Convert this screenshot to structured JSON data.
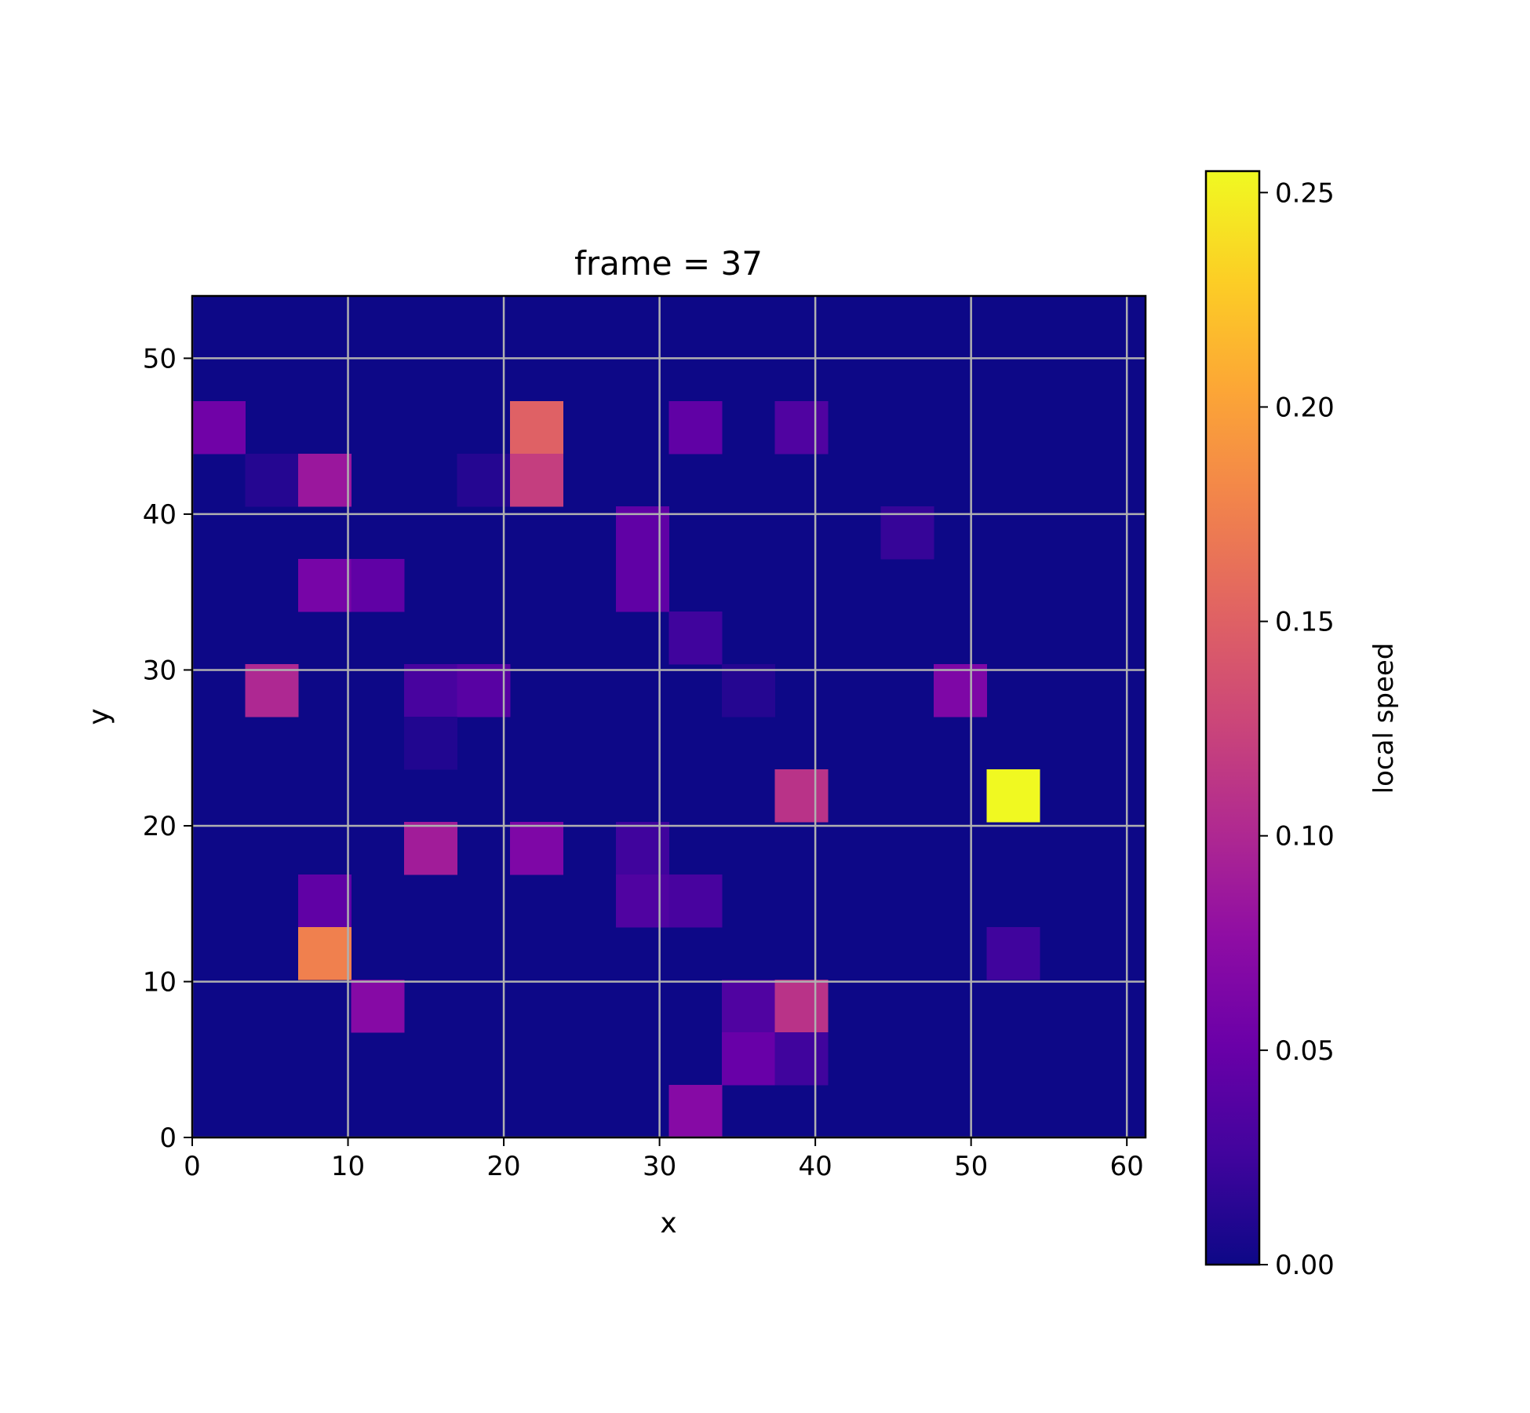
{
  "chart_data": {
    "type": "heatmap",
    "title": "frame = 37",
    "xlabel": "x",
    "ylabel": "y",
    "colorbar_label": "local speed",
    "colormap": "plasma",
    "xlim": [
      0,
      61.2
    ],
    "ylim": [
      0,
      54
    ],
    "cell_width": 3.4,
    "cell_height": 3.375,
    "xticks": [
      0,
      10,
      20,
      30,
      40,
      50,
      60
    ],
    "yticks": [
      0,
      10,
      20,
      30,
      40,
      50
    ],
    "grid": true,
    "vmin": 0,
    "vmax": 0.255,
    "colorbar_ticks": [
      "0.00",
      "0.05",
      "0.10",
      "0.15",
      "0.20",
      "0.25"
    ],
    "background_value": 0.0,
    "cells": [
      {
        "col": 0,
        "row": 13,
        "value": 0.055
      },
      {
        "col": 6,
        "row": 13,
        "value": 0.15
      },
      {
        "col": 9,
        "row": 13,
        "value": 0.045
      },
      {
        "col": 11,
        "row": 13,
        "value": 0.035
      },
      {
        "col": 1,
        "row": 12,
        "value": 0.012
      },
      {
        "col": 2,
        "row": 12,
        "value": 0.085
      },
      {
        "col": 5,
        "row": 12,
        "value": 0.012
      },
      {
        "col": 6,
        "row": 12,
        "value": 0.12
      },
      {
        "col": 8,
        "row": 11,
        "value": 0.045
      },
      {
        "col": 13,
        "row": 11,
        "value": 0.02
      },
      {
        "col": 2,
        "row": 10,
        "value": 0.06
      },
      {
        "col": 3,
        "row": 10,
        "value": 0.045
      },
      {
        "col": 8,
        "row": 10,
        "value": 0.045
      },
      {
        "col": 9,
        "row": 9,
        "value": 0.025
      },
      {
        "col": 1,
        "row": 8,
        "value": 0.1
      },
      {
        "col": 4,
        "row": 8,
        "value": 0.03
      },
      {
        "col": 5,
        "row": 8,
        "value": 0.04
      },
      {
        "col": 10,
        "row": 8,
        "value": 0.012
      },
      {
        "col": 14,
        "row": 8,
        "value": 0.065
      },
      {
        "col": 4,
        "row": 7,
        "value": 0.01
      },
      {
        "col": 11,
        "row": 6,
        "value": 0.11
      },
      {
        "col": 15,
        "row": 6,
        "value": 0.255
      },
      {
        "col": 4,
        "row": 5,
        "value": 0.09
      },
      {
        "col": 6,
        "row": 5,
        "value": 0.065
      },
      {
        "col": 8,
        "row": 5,
        "value": 0.025
      },
      {
        "col": 2,
        "row": 4,
        "value": 0.045
      },
      {
        "col": 8,
        "row": 4,
        "value": 0.035
      },
      {
        "col": 9,
        "row": 4,
        "value": 0.03
      },
      {
        "col": 15,
        "row": 3,
        "value": 0.025
      },
      {
        "col": 2,
        "row": 3,
        "value": 0.175
      },
      {
        "col": 3,
        "row": 2,
        "value": 0.07
      },
      {
        "col": 10,
        "row": 2,
        "value": 0.035
      },
      {
        "col": 11,
        "row": 2,
        "value": 0.11
      },
      {
        "col": 10,
        "row": 1,
        "value": 0.05
      },
      {
        "col": 11,
        "row": 1,
        "value": 0.025
      },
      {
        "col": 9,
        "row": 0,
        "value": 0.07
      }
    ]
  }
}
